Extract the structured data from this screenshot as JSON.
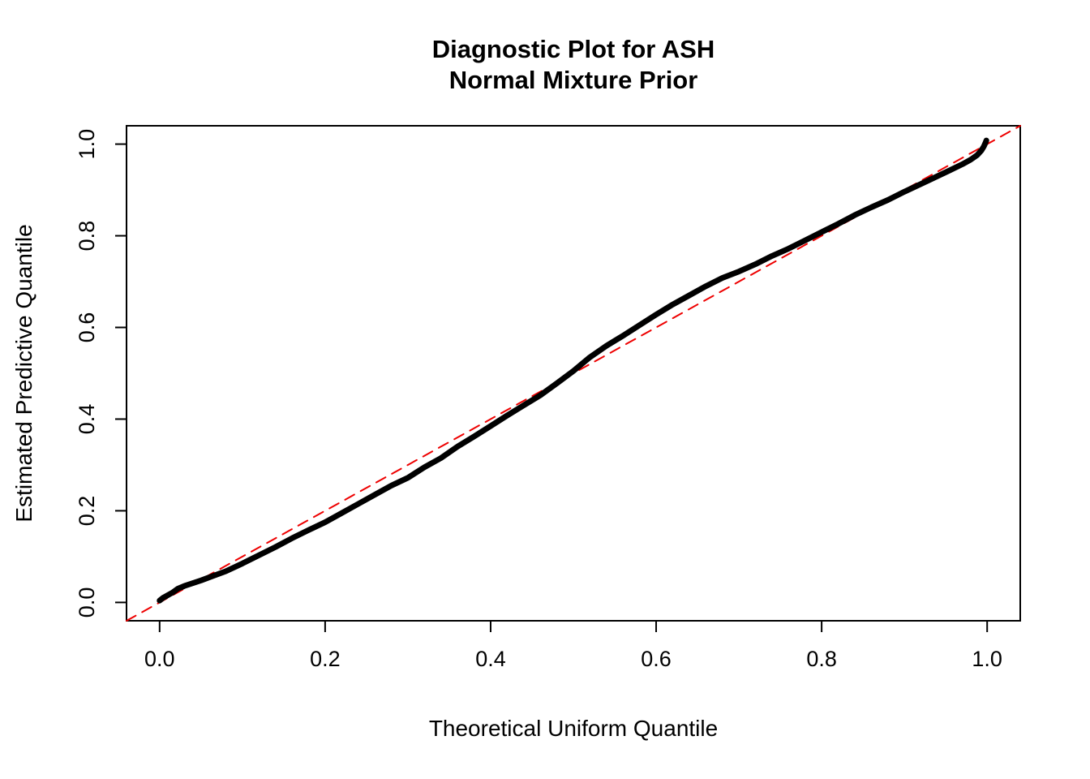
{
  "title": {
    "line1": "Diagnostic Plot for ASH",
    "line2": "Normal Mixture Prior"
  },
  "chart_data": {
    "type": "line",
    "title": "Diagnostic Plot for ASH\nNormal Mixture Prior",
    "xlabel": "Theoretical Uniform Quantile",
    "ylabel": "Estimated Predictive Quantile",
    "xlim": [
      -0.04,
      1.04
    ],
    "ylim": [
      -0.04,
      1.04
    ],
    "grid": false,
    "legend": "none",
    "x_ticks": [
      0.0,
      0.2,
      0.4,
      0.6,
      0.8,
      1.0
    ],
    "x_tick_labels": [
      "0.0",
      "0.2",
      "0.4",
      "0.6",
      "0.8",
      "1.0"
    ],
    "y_ticks": [
      0.0,
      0.2,
      0.4,
      0.6,
      0.8,
      1.0
    ],
    "y_tick_labels": [
      "0.0",
      "0.2",
      "0.4",
      "0.6",
      "0.8",
      "1.0"
    ],
    "series": [
      {
        "name": "reference-diagonal",
        "color": "#ee0000",
        "style": "dashed",
        "width": 2,
        "points": [
          [
            -0.04,
            -0.04
          ],
          [
            1.04,
            1.04
          ]
        ]
      },
      {
        "name": "qq-curve",
        "color": "#000000",
        "style": "solid",
        "width": 7,
        "points": [
          [
            0.0,
            0.004
          ],
          [
            0.004,
            0.01
          ],
          [
            0.01,
            0.016
          ],
          [
            0.016,
            0.022
          ],
          [
            0.022,
            0.03
          ],
          [
            0.03,
            0.036
          ],
          [
            0.04,
            0.042
          ],
          [
            0.05,
            0.048
          ],
          [
            0.065,
            0.058
          ],
          [
            0.08,
            0.068
          ],
          [
            0.1,
            0.085
          ],
          [
            0.12,
            0.103
          ],
          [
            0.14,
            0.121
          ],
          [
            0.16,
            0.14
          ],
          [
            0.18,
            0.158
          ],
          [
            0.2,
            0.175
          ],
          [
            0.22,
            0.195
          ],
          [
            0.24,
            0.215
          ],
          [
            0.26,
            0.235
          ],
          [
            0.28,
            0.255
          ],
          [
            0.3,
            0.272
          ],
          [
            0.32,
            0.295
          ],
          [
            0.34,
            0.315
          ],
          [
            0.36,
            0.34
          ],
          [
            0.38,
            0.362
          ],
          [
            0.4,
            0.385
          ],
          [
            0.42,
            0.408
          ],
          [
            0.44,
            0.43
          ],
          [
            0.46,
            0.452
          ],
          [
            0.48,
            0.478
          ],
          [
            0.5,
            0.505
          ],
          [
            0.52,
            0.535
          ],
          [
            0.54,
            0.56
          ],
          [
            0.56,
            0.582
          ],
          [
            0.58,
            0.605
          ],
          [
            0.6,
            0.628
          ],
          [
            0.62,
            0.65
          ],
          [
            0.64,
            0.67
          ],
          [
            0.66,
            0.69
          ],
          [
            0.68,
            0.708
          ],
          [
            0.7,
            0.722
          ],
          [
            0.72,
            0.738
          ],
          [
            0.74,
            0.756
          ],
          [
            0.76,
            0.772
          ],
          [
            0.78,
            0.79
          ],
          [
            0.8,
            0.808
          ],
          [
            0.82,
            0.826
          ],
          [
            0.84,
            0.845
          ],
          [
            0.86,
            0.862
          ],
          [
            0.88,
            0.878
          ],
          [
            0.9,
            0.896
          ],
          [
            0.92,
            0.913
          ],
          [
            0.94,
            0.93
          ],
          [
            0.955,
            0.943
          ],
          [
            0.97,
            0.956
          ],
          [
            0.98,
            0.966
          ],
          [
            0.988,
            0.976
          ],
          [
            0.993,
            0.986
          ],
          [
            0.996,
            0.995
          ],
          [
            0.998,
            1.003
          ],
          [
            0.999,
            1.008
          ]
        ]
      }
    ]
  },
  "colors": {
    "background": "#ffffff",
    "axis": "#000000",
    "curve": "#000000",
    "reference_line": "#ee0000"
  }
}
